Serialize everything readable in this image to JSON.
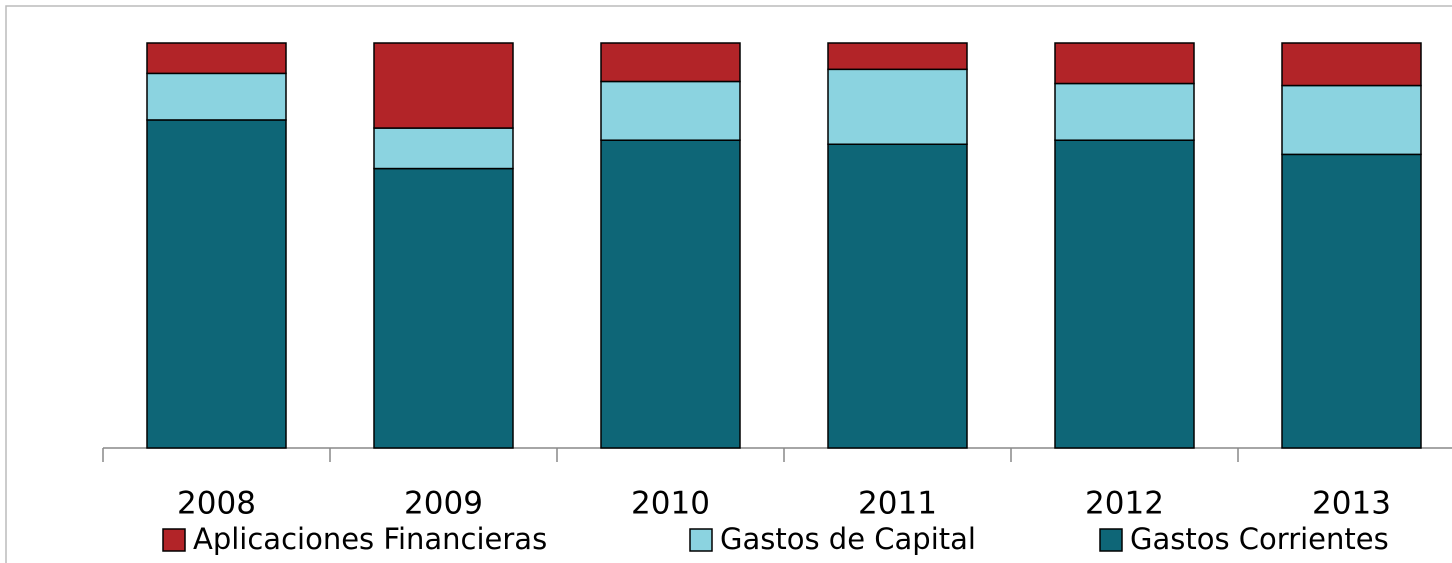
{
  "chart_data": {
    "type": "stacked_bar",
    "categories": [
      "2008",
      "2009",
      "2010",
      "2011",
      "2012",
      "2013"
    ],
    "series": [
      {
        "name": "Aplicaciones Financieras",
        "color": "#b22428",
        "values": [
          7.5,
          21,
          9.5,
          6.5,
          10,
          10.5
        ]
      },
      {
        "name": "Gastos de Capital",
        "color": "#8bd3e0",
        "values": [
          11.5,
          10,
          14.5,
          18.5,
          14,
          17
        ]
      },
      {
        "name": "Gastos Corrientes",
        "color": "#0e6677",
        "values": [
          81,
          69,
          76,
          75,
          76,
          72.5
        ]
      }
    ],
    "ylim": [
      0,
      100
    ],
    "legend": "bottom"
  }
}
